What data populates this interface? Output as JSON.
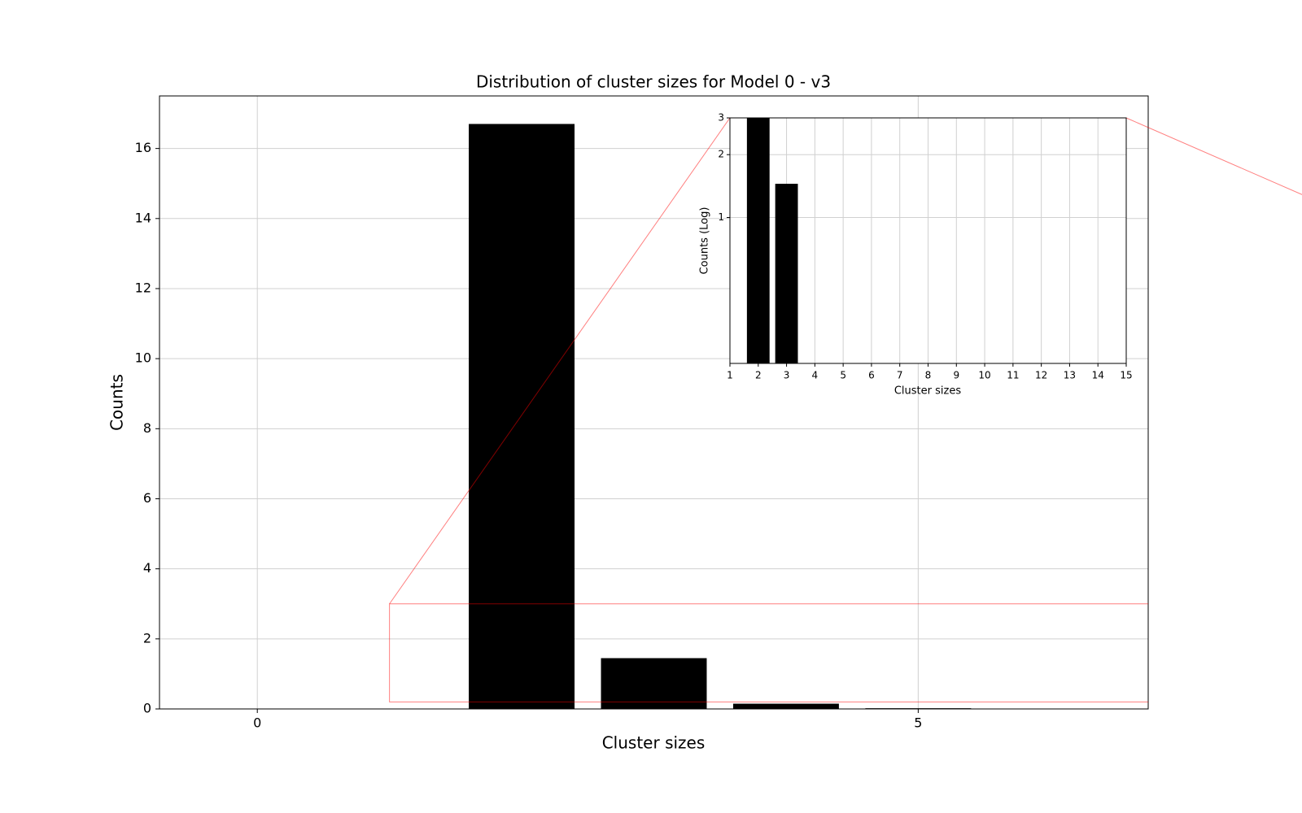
{
  "chart_data": [
    {
      "type": "bar",
      "title": "Distribution of cluster sizes for Model 0 - v3",
      "x_label": "Cluster sizes",
      "y_label": "Counts",
      "x": [
        2,
        3,
        4,
        5
      ],
      "values": [
        16.7,
        1.45,
        0.15,
        0.02
      ],
      "color": "#000000",
      "xlim": [
        -0.74,
        6.74
      ],
      "xticks": [
        0,
        5
      ],
      "ylim": [
        0,
        17.5
      ],
      "yticks": [
        0,
        2,
        4,
        6,
        8,
        10,
        12,
        14,
        16
      ],
      "grid": true
    },
    {
      "type": "inset",
      "x_label": "Cluster sizes",
      "y_label": "Counts (Log)",
      "xlim": [
        1,
        15
      ],
      "xticks": [
        1,
        2,
        3,
        4,
        5,
        6,
        7,
        8,
        9,
        10,
        11,
        12,
        13,
        14,
        15
      ],
      "ylim": [
        0.2,
        3
      ],
      "yticks": [
        1,
        2,
        3
      ],
      "log_y": true,
      "grid": true,
      "indicator_color": "#ff0000"
    }
  ]
}
